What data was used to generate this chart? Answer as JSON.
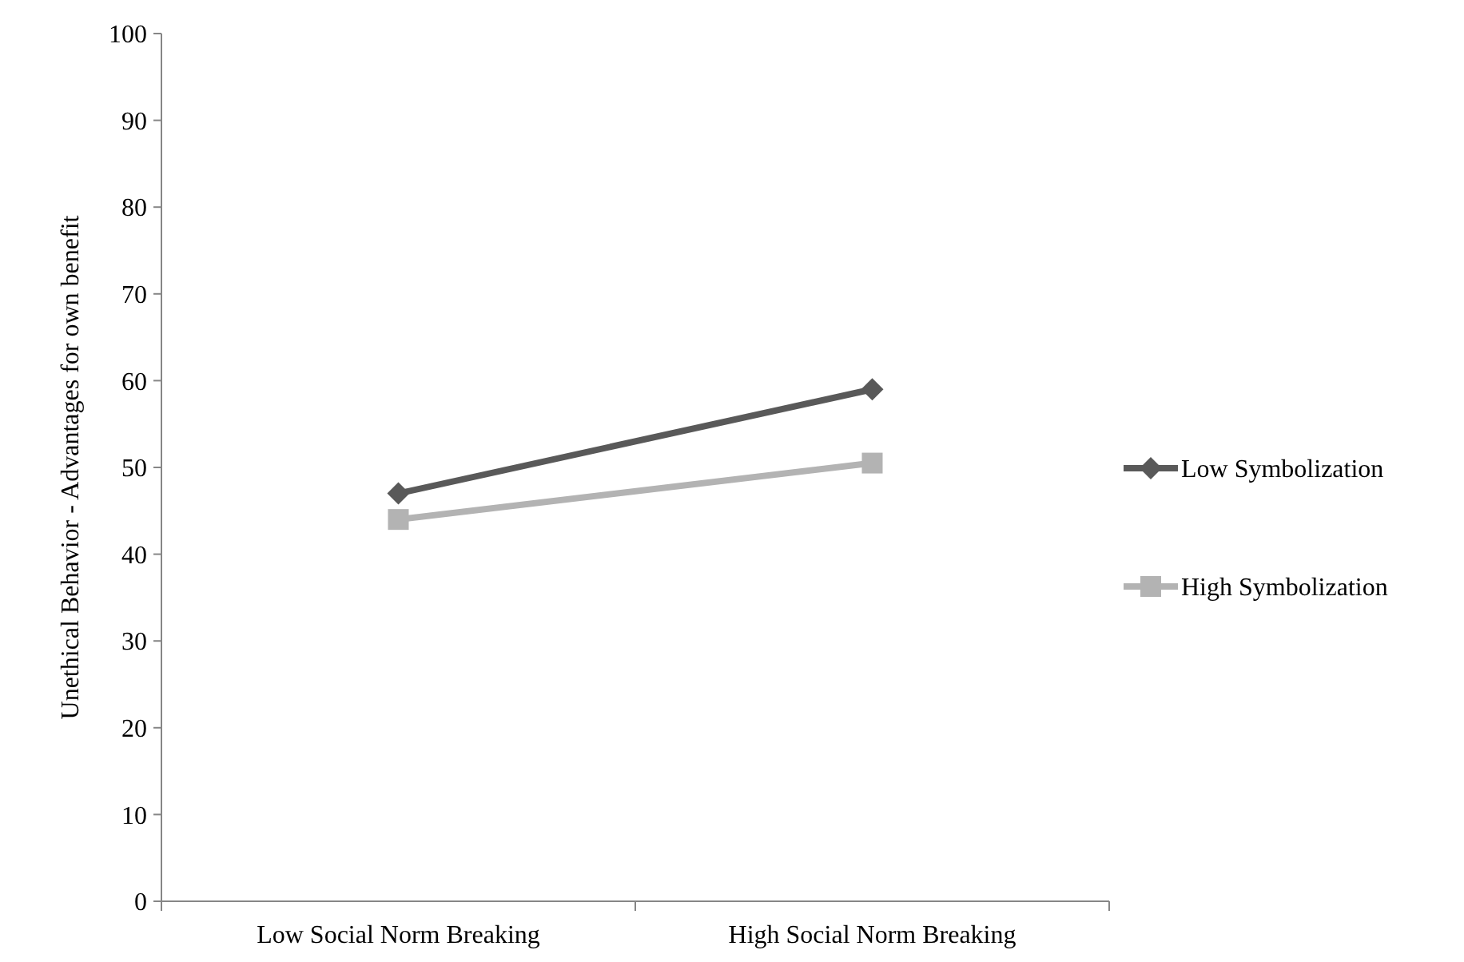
{
  "chart_data": {
    "type": "line",
    "ylabel": "Unethical Behavior - Advantages for own benefit",
    "categories": [
      "Low Social Norm Breaking",
      "High Social Norm Breaking"
    ],
    "series": [
      {
        "name": "Low Symbolization",
        "color": "#595959",
        "values": [
          47,
          59
        ],
        "marker": "diamond"
      },
      {
        "name": "High Symbolization",
        "color": "#b3b3b3",
        "values": [
          44,
          50.5
        ],
        "marker": "square"
      }
    ],
    "ylim": [
      0,
      100
    ],
    "yticks": [
      0,
      10,
      20,
      30,
      40,
      50,
      60,
      70,
      80,
      90,
      100
    ],
    "grid": false,
    "legend": "right"
  }
}
